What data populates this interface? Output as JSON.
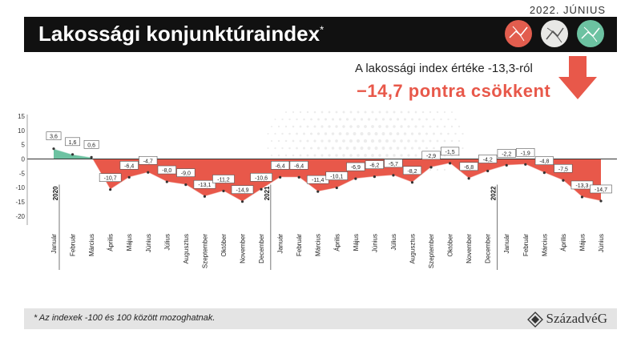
{
  "header": {
    "date": "2022. JÚNIUS",
    "title": "Lakossági konjunktúraindex",
    "title_mark": "*"
  },
  "summary": {
    "line1": "A lakossági index értéke -13,3-ról",
    "line2": "−14,7 pontra  csökkent"
  },
  "footer": {
    "note": "* Az indexek -100 és 100 között mozoghatnak.",
    "logo": "SzázadvéG"
  },
  "colors": {
    "positive": "#6cc2a1",
    "negative": "#e8584a",
    "title_bar": "#111111",
    "accent": "#e8584a"
  },
  "chart_data": {
    "type": "area",
    "yticks": [
      15,
      10,
      5,
      0,
      -5,
      -10,
      -15,
      -20
    ],
    "ylim": [
      -22,
      15
    ],
    "grid": false,
    "years": [
      "2020",
      "2021",
      "2022"
    ],
    "x": [
      "Január",
      "Február",
      "Március",
      "Április",
      "Május",
      "Június",
      "Július",
      "Augusztus",
      "Szeptember",
      "Október",
      "November",
      "December",
      "Január",
      "Február",
      "Március",
      "Április",
      "Május",
      "Június",
      "Július",
      "Augusztus",
      "Szeptember",
      "Október",
      "November",
      "December",
      "Január",
      "Február",
      "Március",
      "Április",
      "Május",
      "Június"
    ],
    "values": [
      3.6,
      1.6,
      0.6,
      -10.7,
      -6.4,
      -4.7,
      -8.0,
      -9.0,
      -13.1,
      -11.2,
      -14.9,
      -10.6,
      -6.4,
      -6.4,
      -11.4,
      -10.1,
      -6.9,
      -6.2,
      -5.7,
      -8.2,
      -2.9,
      -1.5,
      -6.8,
      -4.2,
      -2.2,
      -1.9,
      -4.8,
      -7.5,
      -13.3,
      -14.7
    ],
    "labels": [
      "3,6",
      "1,6",
      "0,6",
      "-10,7",
      "-6,4",
      "-4,7",
      "-8,0",
      "-9,0",
      "-13,1",
      "-11,2",
      "-14,9",
      "-10,6",
      "-6,4",
      "-6,4",
      "-11,4",
      "-10,1",
      "-6,9",
      "-6,2",
      "-5,7",
      "-8,2",
      "-2,9",
      "-1,5",
      "-6,8",
      "-4,2",
      "-2,2",
      "-1,9",
      "-4,8",
      "-7,5",
      "-13,3",
      "-14,7"
    ]
  }
}
